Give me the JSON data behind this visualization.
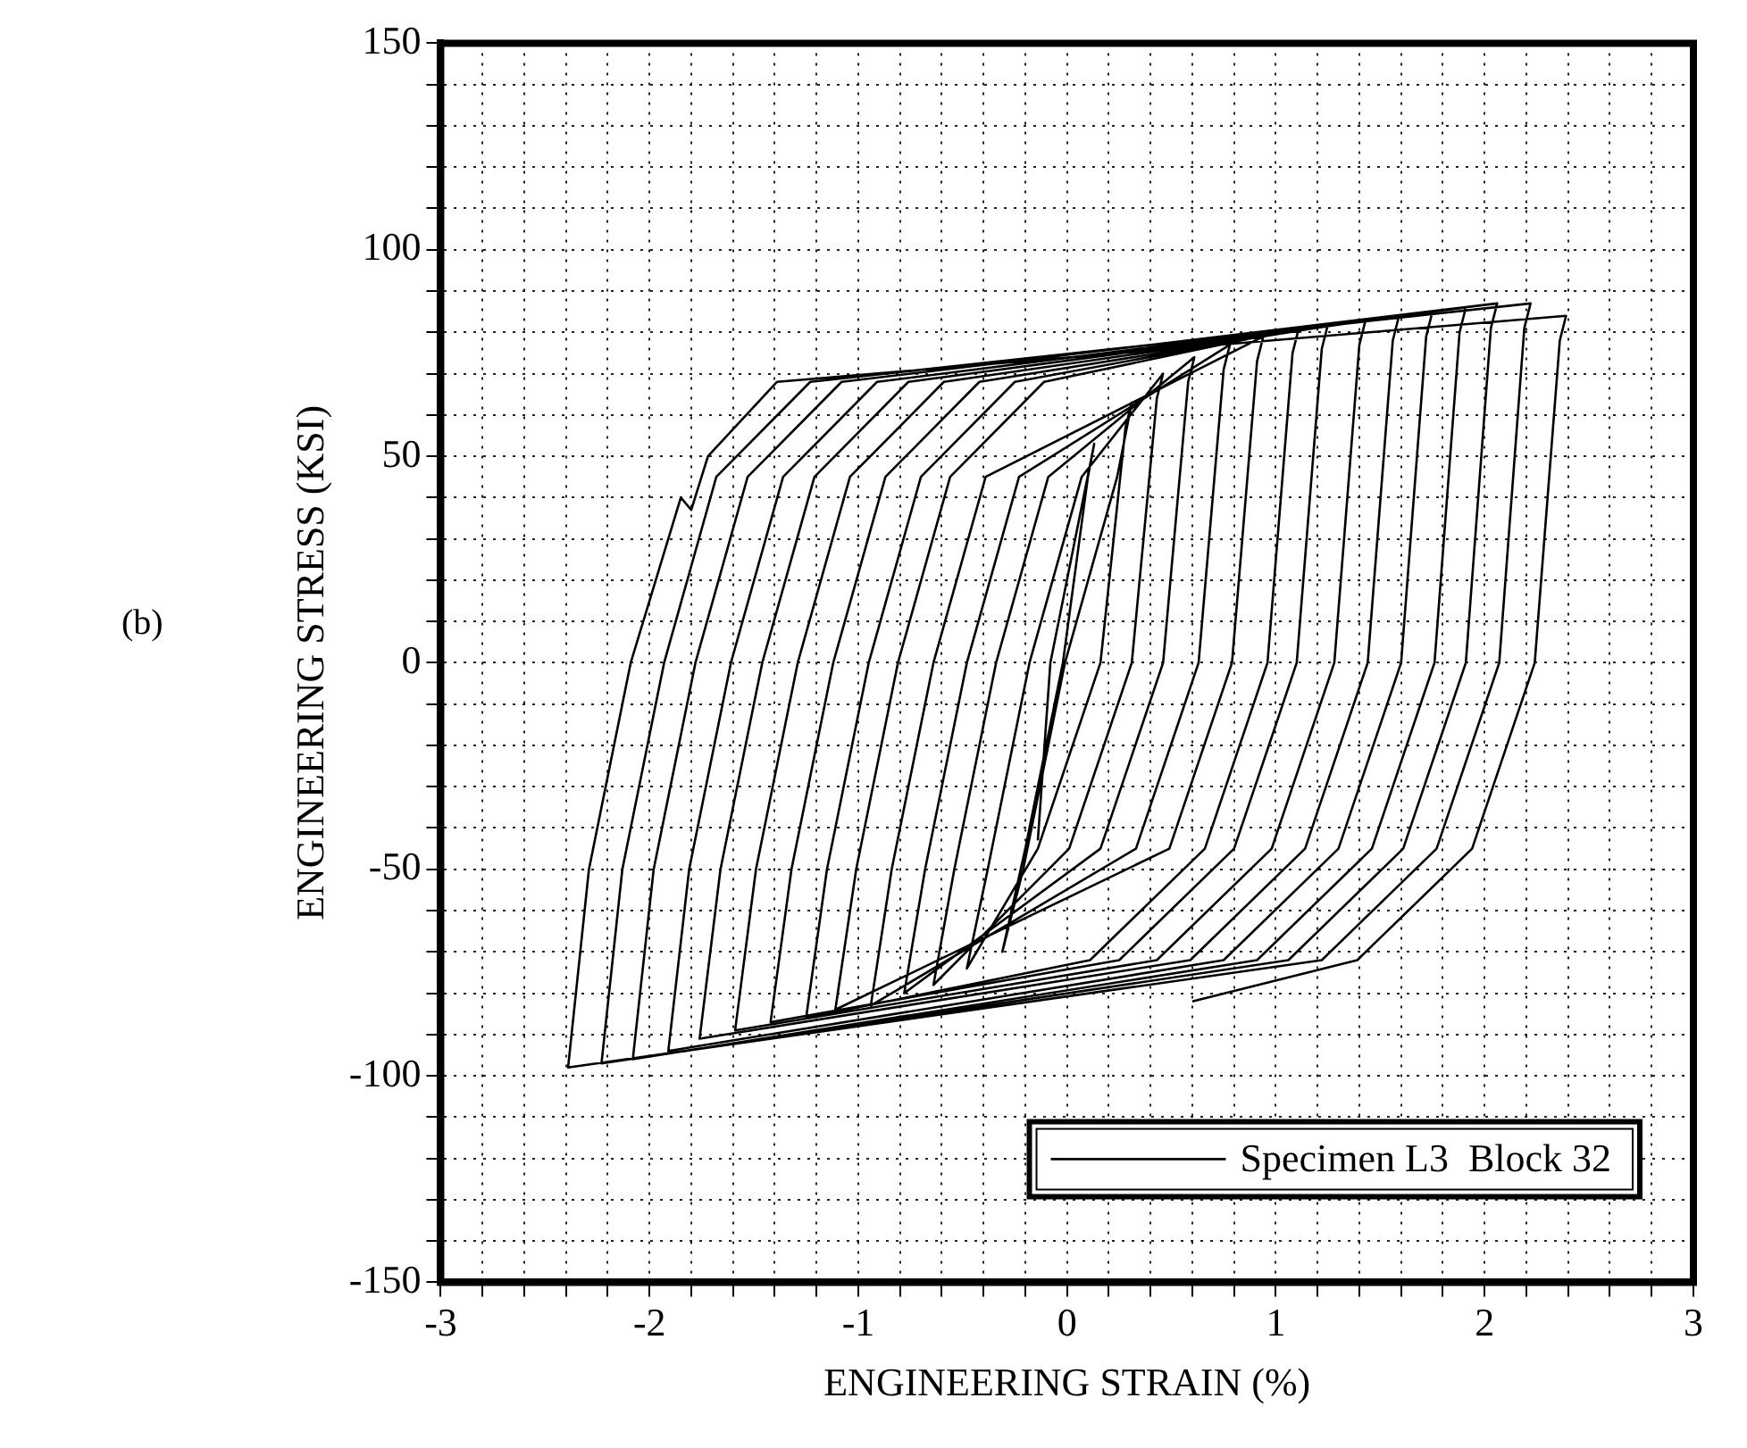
{
  "chart_data": {
    "type": "line",
    "xlabel": "ENGINEERING STRAIN (%)",
    "ylabel": "ENGINEERING STRESS (KSI)",
    "annotations": [
      "(b)"
    ],
    "xlim": [
      -3,
      3
    ],
    "ylim": [
      -150,
      150
    ],
    "xticks": [
      -3,
      {
        "value": -2.8,
        "label": null
      },
      {
        "value": -2.6,
        "label": null
      },
      {
        "value": -2.4,
        "label": null
      },
      {
        "value": -2.2,
        "label": null
      },
      -2,
      {
        "value": -1.8,
        "label": null
      },
      {
        "value": -1.6,
        "label": null
      },
      {
        "value": -1.4,
        "label": null
      },
      {
        "value": -1.2,
        "label": null
      },
      -1,
      {
        "value": -0.8,
        "label": null
      },
      {
        "value": -0.6,
        "label": null
      },
      {
        "value": -0.4,
        "label": null
      },
      {
        "value": -0.2,
        "label": null
      },
      0,
      {
        "value": 0.2,
        "label": null
      },
      {
        "value": 0.4,
        "label": null
      },
      {
        "value": 0.6,
        "label": null
      },
      {
        "value": 0.8,
        "label": null
      },
      1,
      {
        "value": 1.2,
        "label": null
      },
      {
        "value": 1.4,
        "label": null
      },
      {
        "value": 1.6,
        "label": null
      },
      {
        "value": 1.8,
        "label": null
      },
      2,
      {
        "value": 2.2,
        "label": null
      },
      {
        "value": 2.4,
        "label": null
      },
      {
        "value": 2.6,
        "label": null
      },
      {
        "value": 2.8,
        "label": null
      },
      3
    ],
    "yticks": [
      -150,
      {
        "value": -140,
        "label": null
      },
      {
        "value": -130,
        "label": null
      },
      {
        "value": -120,
        "label": null
      },
      {
        "value": -110,
        "label": null
      },
      -100,
      {
        "value": -90,
        "label": null
      },
      {
        "value": -80,
        "label": null
      },
      {
        "value": -70,
        "label": null
      },
      {
        "value": -60,
        "label": null
      },
      -50,
      {
        "value": -40,
        "label": null
      },
      {
        "value": -30,
        "label": null
      },
      {
        "value": -20,
        "label": null
      },
      {
        "value": -10,
        "label": null
      },
      0,
      {
        "value": 10,
        "label": null
      },
      {
        "value": 20,
        "label": null
      },
      {
        "value": 30,
        "label": null
      },
      {
        "value": 40,
        "label": null
      },
      50,
      {
        "value": 60,
        "label": null
      },
      {
        "value": 70,
        "label": null
      },
      {
        "value": 80,
        "label": null
      },
      {
        "value": 90,
        "label": null
      },
      100,
      {
        "value": 110,
        "label": null
      },
      {
        "value": 120,
        "label": null
      },
      {
        "value": 130,
        "label": null
      },
      {
        "value": 140,
        "label": null
      },
      150
    ],
    "grid": true,
    "legend": "bottom right",
    "marker": "none",
    "line_style": "solid",
    "series": [
      {
        "name": "Specimen L3  Block 32",
        "color": "#000000",
        "x": [
          -0.14,
          -0.08,
          0.13,
          0.1,
          -0.02,
          -0.2,
          -0.31,
          -0.21,
          -0.01,
          0.24,
          0.31,
          0.28,
          0.16,
          -0.14,
          -0.48,
          -0.38,
          -0.18,
          0.07,
          0.46,
          0.43,
          0.31,
          0.01,
          -0.64,
          -0.54,
          -0.34,
          -0.09,
          0.61,
          0.58,
          0.46,
          0.16,
          -0.78,
          -0.68,
          -0.48,
          -0.23,
          0.78,
          0.75,
          0.63,
          0.33,
          -0.94,
          -0.84,
          -0.64,
          -0.39,
          0.94,
          0.91,
          0.79,
          0.49,
          -1.11,
          -1.01,
          -0.81,
          -0.56,
          -0.11,
          1.11,
          1.08,
          0.96,
          0.66,
          0.11,
          -1.25,
          -1.15,
          -0.95,
          -0.7,
          -0.25,
          1.25,
          1.22,
          1.1,
          0.8,
          0.25,
          -1.42,
          -1.32,
          -1.12,
          -0.87,
          -0.42,
          1.43,
          1.4,
          1.28,
          0.98,
          0.43,
          -1.59,
          -1.49,
          -1.29,
          -1.04,
          -0.59,
          1.59,
          1.56,
          1.44,
          1.14,
          0.59,
          -1.76,
          -1.66,
          -1.46,
          -1.21,
          -0.76,
          1.75,
          1.72,
          1.6,
          1.3,
          0.75,
          -1.91,
          -1.81,
          -1.61,
          -1.36,
          -0.91,
          1.91,
          1.88,
          1.76,
          1.46,
          0.91,
          -2.08,
          -1.98,
          -1.78,
          -1.53,
          -1.08,
          2.06,
          2.03,
          1.91,
          1.61,
          1.06,
          -2.23,
          -2.13,
          -1.93,
          -1.68,
          -1.23,
          2.22,
          2.19,
          2.07,
          1.77,
          1.22,
          -2.39,
          -2.29,
          -2.09,
          -1.85,
          -1.8,
          -1.72,
          -1.39,
          2.39,
          2.36,
          2.24,
          1.94,
          1.39,
          0.6
        ],
        "values": [
          -43,
          0,
          53,
          45,
          0,
          -45,
          -70,
          -50,
          0,
          45,
          63,
          57,
          0,
          -45,
          -74,
          -50,
          0,
          45,
          70,
          64,
          0,
          -45,
          -78,
          -50,
          0,
          45,
          74,
          68,
          0,
          -45,
          -80,
          -50,
          0,
          45,
          77,
          71,
          0,
          -45,
          -83,
          -50,
          0,
          45,
          79,
          73,
          0,
          -45,
          -84,
          -50,
          0,
          45,
          68,
          81,
          75,
          0,
          -45,
          -72,
          -86,
          -50,
          0,
          45,
          68,
          82,
          76,
          0,
          -45,
          -72,
          -87,
          -50,
          0,
          45,
          68,
          83,
          77,
          0,
          -45,
          -72,
          -89,
          -50,
          0,
          45,
          68,
          84,
          78,
          0,
          -45,
          -72,
          -91,
          -50,
          0,
          45,
          68,
          85,
          79,
          0,
          -45,
          -72,
          -94,
          -50,
          0,
          45,
          68,
          86,
          80,
          0,
          -45,
          -72,
          -96,
          -50,
          0,
          45,
          68,
          87,
          81,
          0,
          -45,
          -72,
          -97,
          -50,
          0,
          45,
          68,
          87,
          81,
          0,
          -45,
          -72,
          -98,
          -50,
          0,
          40,
          37,
          50,
          68,
          84,
          78,
          0,
          -45,
          -72,
          -82
        ]
      }
    ]
  }
}
